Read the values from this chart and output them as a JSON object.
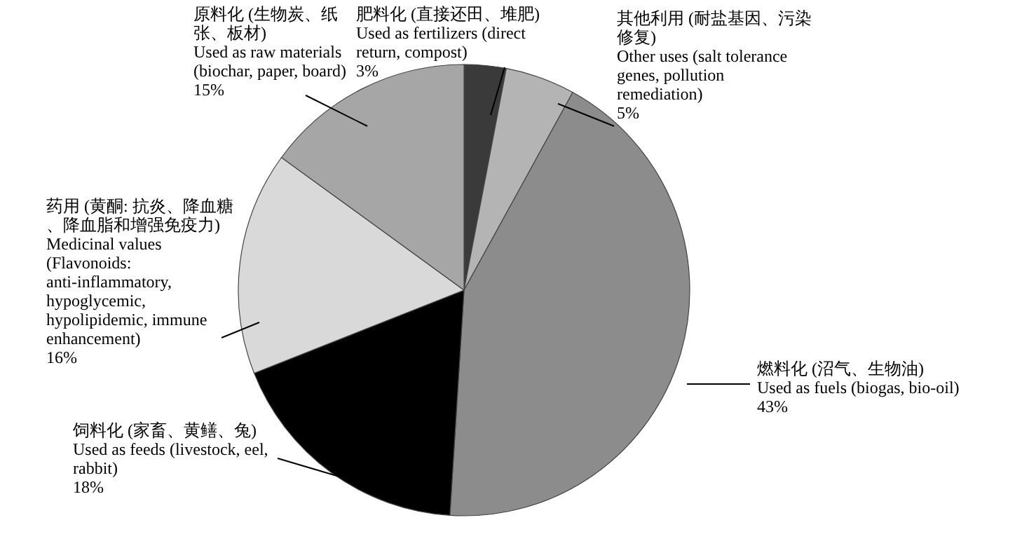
{
  "chart_data": {
    "type": "pie",
    "categories": [
      "肥料化 (直接还田、堆肥) Used as fertilizers (direct return, compost)",
      "其他利用 (耐盐基因、污染修复) Other uses (salt tolerance genes, pollution remediation)",
      "燃料化 (沼气、生物油) Used as fuels (biogas, bio-oil)",
      "饲料化 (家畜、黄鳝、兔) Used as feeds (livestock, eel, rabbit)",
      "药用 (黄酮: 抗炎、降血糖、降血脂和增强免疫力) Medicinal values (Flavonoids: anti-inflammatory, hypoglycemic, hypolipidemic, immune enhancement)",
      "原料化 (生物炭、纸张、板材) Used as raw materials (biochar, paper, board)"
    ],
    "values": [
      3,
      5,
      43,
      18,
      16,
      15
    ],
    "value_labels": [
      "3%",
      "5%",
      "43%",
      "18%",
      "16%",
      "15%"
    ],
    "colors": [
      "#3a3a3a",
      "#b4b4b4",
      "#8c8c8c",
      "#000000",
      "#d9d9d9",
      "#a6a6a6"
    ]
  }
}
